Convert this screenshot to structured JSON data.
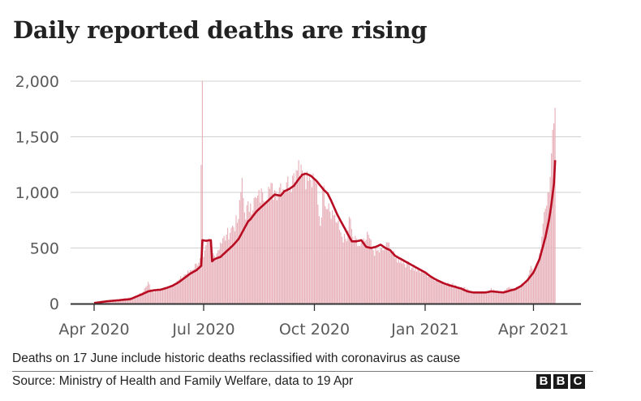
{
  "header": {
    "title": "Daily reported deaths are rising"
  },
  "footer": {
    "note": "Deaths on 17 June include historic deaths reclassified with coronavirus as cause",
    "source": "Source: Ministry of Health and Family Welfare, data to 19 Apr",
    "logo_letters": [
      "B",
      "B",
      "C"
    ]
  },
  "colors": {
    "bar": "#e8b3bb",
    "line": "#b80c22",
    "grid": "#d0d0d0",
    "axis": "#333333"
  },
  "chart_data": {
    "type": "bar",
    "title": "Daily reported deaths are rising",
    "xlabel": "",
    "ylabel": "",
    "ylim": [
      0,
      2000
    ],
    "yticks": [
      {
        "value": 0,
        "label": "0"
      },
      {
        "value": 500,
        "label": "500"
      },
      {
        "value": 1000,
        "label": "1,000"
      },
      {
        "value": 1500,
        "label": "1,500"
      },
      {
        "value": 2000,
        "label": "2,000"
      }
    ],
    "x_start_date": "2020-04-01",
    "x_end_date": "2021-04-19",
    "x_range_days": [
      -14,
      405
    ],
    "xticks": [
      {
        "day": 0,
        "label": "Apr 2020"
      },
      {
        "day": 91,
        "label": "Jul 2020"
      },
      {
        "day": 183,
        "label": "Oct 2020"
      },
      {
        "day": 275,
        "label": "Jan 2021"
      },
      {
        "day": 365,
        "label": "Apr 2021"
      }
    ],
    "grid": true,
    "legend": "none",
    "series": [
      {
        "name": "Daily reported deaths",
        "kind": "bar",
        "anchors_day_value": [
          [
            0,
            5
          ],
          [
            10,
            20
          ],
          [
            20,
            35
          ],
          [
            30,
            55
          ],
          [
            35,
            70
          ],
          [
            40,
            100
          ],
          [
            45,
            195
          ],
          [
            48,
            110
          ],
          [
            55,
            120
          ],
          [
            60,
            150
          ],
          [
            65,
            170
          ],
          [
            70,
            210
          ],
          [
            75,
            260
          ],
          [
            80,
            300
          ],
          [
            85,
            360
          ],
          [
            88,
            410
          ],
          [
            90,
            2003
          ],
          [
            91,
            420
          ],
          [
            95,
            560
          ],
          [
            100,
            430
          ],
          [
            105,
            550
          ],
          [
            110,
            620
          ],
          [
            115,
            700
          ],
          [
            120,
            760
          ],
          [
            123,
            1130
          ],
          [
            125,
            820
          ],
          [
            130,
            900
          ],
          [
            135,
            950
          ],
          [
            140,
            1000
          ],
          [
            145,
            1050
          ],
          [
            150,
            1020
          ],
          [
            155,
            1080
          ],
          [
            160,
            1090
          ],
          [
            165,
            1150
          ],
          [
            168,
            1200
          ],
          [
            170,
            1290
          ],
          [
            172,
            1250
          ],
          [
            175,
            1180
          ],
          [
            180,
            1110
          ],
          [
            185,
            1080
          ],
          [
            188,
            700
          ],
          [
            190,
            1030
          ],
          [
            195,
            900
          ],
          [
            200,
            800
          ],
          [
            205,
            640
          ],
          [
            210,
            560
          ],
          [
            212,
            780
          ],
          [
            215,
            600
          ],
          [
            220,
            520
          ],
          [
            225,
            560
          ],
          [
            228,
            620
          ],
          [
            232,
            480
          ],
          [
            240,
            480
          ],
          [
            245,
            550
          ],
          [
            250,
            410
          ],
          [
            255,
            400
          ],
          [
            260,
            360
          ],
          [
            265,
            330
          ],
          [
            270,
            300
          ],
          [
            275,
            280
          ],
          [
            280,
            240
          ],
          [
            285,
            220
          ],
          [
            290,
            200
          ],
          [
            295,
            180
          ],
          [
            300,
            170
          ],
          [
            305,
            150
          ],
          [
            310,
            135
          ],
          [
            315,
            100
          ],
          [
            320,
            105
          ],
          [
            325,
            95
          ],
          [
            330,
            140
          ],
          [
            335,
            100
          ],
          [
            340,
            105
          ],
          [
            345,
            150
          ],
          [
            350,
            130
          ],
          [
            355,
            180
          ],
          [
            360,
            200
          ],
          [
            363,
            340
          ],
          [
            366,
            280
          ],
          [
            370,
            450
          ],
          [
            373,
            720
          ],
          [
            376,
            880
          ],
          [
            378,
            1000
          ],
          [
            380,
            1350
          ],
          [
            382,
            1620
          ],
          [
            383,
            1761
          ]
        ]
      },
      {
        "name": "7-day average",
        "kind": "line",
        "anchors_day_value": [
          [
            0,
            5
          ],
          [
            10,
            20
          ],
          [
            20,
            30
          ],
          [
            30,
            40
          ],
          [
            40,
            85
          ],
          [
            45,
            110
          ],
          [
            50,
            120
          ],
          [
            55,
            125
          ],
          [
            60,
            140
          ],
          [
            65,
            160
          ],
          [
            70,
            190
          ],
          [
            75,
            230
          ],
          [
            80,
            270
          ],
          [
            85,
            300
          ],
          [
            88,
            330
          ],
          [
            89,
            340
          ],
          [
            90,
            570
          ],
          [
            93,
            565
          ],
          [
            96,
            570
          ],
          [
            97,
            570
          ],
          [
            98,
            380
          ],
          [
            100,
            400
          ],
          [
            105,
            420
          ],
          [
            110,
            470
          ],
          [
            115,
            520
          ],
          [
            120,
            580
          ],
          [
            125,
            680
          ],
          [
            128,
            740
          ],
          [
            130,
            760
          ],
          [
            135,
            830
          ],
          [
            140,
            880
          ],
          [
            145,
            930
          ],
          [
            150,
            980
          ],
          [
            155,
            970
          ],
          [
            158,
            1010
          ],
          [
            162,
            1030
          ],
          [
            166,
            1060
          ],
          [
            170,
            1120
          ],
          [
            173,
            1160
          ],
          [
            176,
            1168
          ],
          [
            180,
            1150
          ],
          [
            185,
            1100
          ],
          [
            188,
            1060
          ],
          [
            191,
            1020
          ],
          [
            194,
            990
          ],
          [
            198,
            900
          ],
          [
            202,
            800
          ],
          [
            206,
            720
          ],
          [
            210,
            640
          ],
          [
            214,
            560
          ],
          [
            218,
            560
          ],
          [
            222,
            570
          ],
          [
            226,
            510
          ],
          [
            230,
            500
          ],
          [
            234,
            510
          ],
          [
            238,
            530
          ],
          [
            242,
            500
          ],
          [
            246,
            480
          ],
          [
            250,
            430
          ],
          [
            255,
            400
          ],
          [
            260,
            370
          ],
          [
            265,
            340
          ],
          [
            270,
            310
          ],
          [
            275,
            280
          ],
          [
            280,
            240
          ],
          [
            285,
            210
          ],
          [
            290,
            185
          ],
          [
            295,
            165
          ],
          [
            300,
            150
          ],
          [
            305,
            135
          ],
          [
            310,
            110
          ],
          [
            315,
            100
          ],
          [
            320,
            100
          ],
          [
            325,
            100
          ],
          [
            330,
            110
          ],
          [
            335,
            105
          ],
          [
            340,
            100
          ],
          [
            345,
            115
          ],
          [
            350,
            130
          ],
          [
            355,
            160
          ],
          [
            360,
            210
          ],
          [
            365,
            280
          ],
          [
            370,
            400
          ],
          [
            375,
            600
          ],
          [
            378,
            760
          ],
          [
            380,
            900
          ],
          [
            382,
            1080
          ],
          [
            383,
            1290
          ]
        ]
      }
    ]
  }
}
